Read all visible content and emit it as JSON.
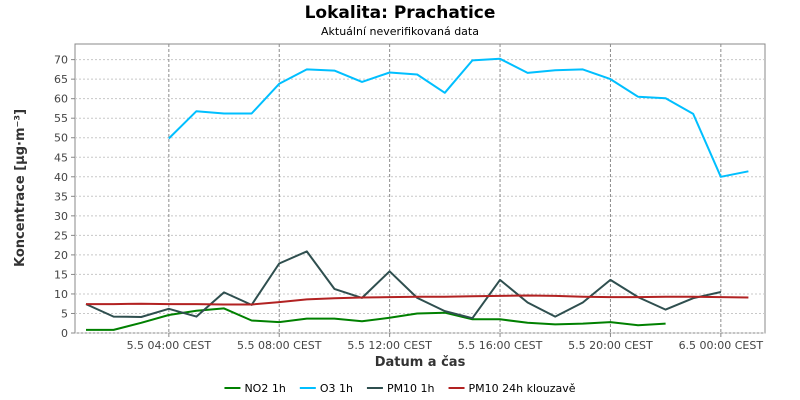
{
  "chart_data": {
    "type": "line",
    "title": "Lokalita: Prachatice",
    "subtitle": "Aktuální neverifikovaná data",
    "xlabel": "Datum a čas",
    "ylabel": "Koncentrace [µg·m⁻³]",
    "ylim": [
      0,
      74
    ],
    "yticks": [
      0,
      5,
      10,
      15,
      20,
      25,
      30,
      35,
      40,
      45,
      50,
      55,
      60,
      65,
      70
    ],
    "x": [
      "5.5 01:00",
      "5.5 02:00",
      "5.5 03:00",
      "5.5 04:00",
      "5.5 05:00",
      "5.5 06:00",
      "5.5 07:00",
      "5.5 08:00",
      "5.5 09:00",
      "5.5 10:00",
      "5.5 11:00",
      "5.5 12:00",
      "5.5 13:00",
      "5.5 14:00",
      "5.5 15:00",
      "5.5 16:00",
      "5.5 17:00",
      "5.5 18:00",
      "5.5 19:00",
      "5.5 20:00",
      "5.5 21:00",
      "5.5 22:00",
      "5.5 23:00",
      "6.5 00:00",
      "6.5 01:00"
    ],
    "xlim": [
      "5.5 00:36",
      "6.5 01:36"
    ],
    "xtick_labels": [
      {
        "at": "5.5 04:00",
        "label": "5.5 04:00 CEST"
      },
      {
        "at": "5.5 08:00",
        "label": "5.5 08:00 CEST"
      },
      {
        "at": "5.5 12:00",
        "label": "5.5 12:00 CEST"
      },
      {
        "at": "5.5 16:00",
        "label": "5.5 16:00 CEST"
      },
      {
        "at": "5.5 20:00",
        "label": "5.5 20:00 CEST"
      },
      {
        "at": "6.5 00:00",
        "label": "6.5 00:00 CEST"
      }
    ],
    "grid": true,
    "legend_position": "bottom",
    "series": [
      {
        "name": "NO2 1h",
        "color": "#008000",
        "values": [
          0.8,
          0.8,
          2.6,
          4.6,
          5.7,
          6.3,
          3.2,
          2.8,
          3.7,
          3.7,
          3.0,
          3.9,
          5.0,
          5.2,
          3.5,
          3.5,
          2.6,
          2.2,
          2.4,
          2.8,
          2.0,
          2.4,
          null,
          null,
          null
        ]
      },
      {
        "name": "O3 1h",
        "color": "#00bfff",
        "values": [
          null,
          null,
          null,
          49.8,
          56.8,
          56.2,
          56.2,
          63.8,
          67.5,
          67.2,
          64.3,
          66.7,
          66.2,
          61.5,
          69.8,
          70.2,
          66.6,
          67.3,
          67.5,
          65.0,
          60.5,
          60.1,
          56.1,
          40.0,
          41.4
        ]
      },
      {
        "name": "PM10 1h",
        "color": "#2f4f4f",
        "values": [
          7.4,
          4.2,
          4.1,
          6.2,
          4.2,
          10.4,
          7.2,
          17.8,
          20.9,
          11.3,
          9.0,
          15.8,
          9.0,
          5.6,
          3.8,
          13.6,
          7.8,
          4.2,
          7.8,
          13.6,
          9.2,
          6.0,
          8.9,
          10.5,
          null
        ]
      },
      {
        "name": "PM10 24h klouzavě",
        "color": "#b22222",
        "values": [
          7.4,
          7.4,
          7.5,
          7.4,
          7.4,
          7.3,
          7.3,
          7.9,
          8.6,
          8.9,
          9.1,
          9.2,
          9.3,
          9.3,
          9.4,
          9.5,
          9.6,
          9.5,
          9.3,
          9.2,
          9.2,
          9.3,
          9.3,
          9.2,
          9.1
        ]
      }
    ]
  }
}
